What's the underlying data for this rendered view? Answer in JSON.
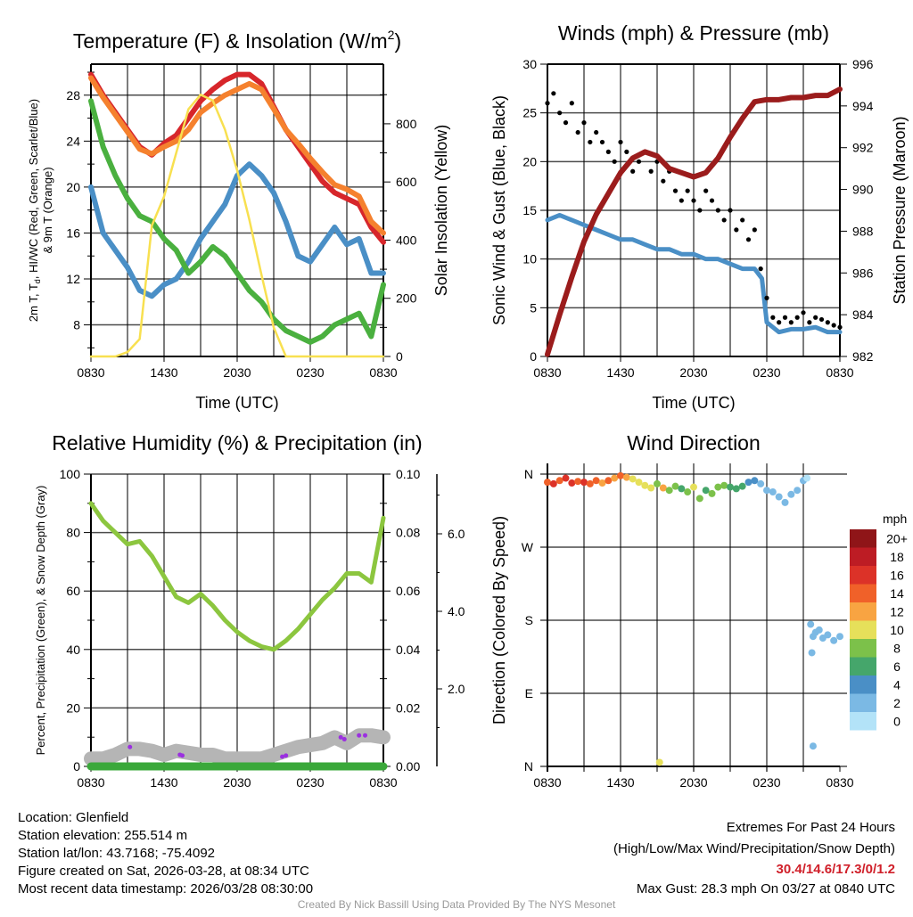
{
  "footer": {
    "location": "Location: Glenfield",
    "elevation": "Station elevation: 255.514 m",
    "latlon": "Station lat/lon: 43.7168; -75.4092",
    "created": "Figure created on Sat, 2026-03-28, at 08:34 UTC",
    "recent": "Most recent data timestamp: 2026/03/28 08:30:00",
    "extremes_title": "Extremes For Past 24 Hours",
    "extremes_sub": "(High/Low/Max Wind/Precipitation/Snow Depth)",
    "extremes_values": "30.4/14.6/17.3/0/1.2",
    "max_gust": "Max Gust: 28.3 mph On 03/27 at 0840 UTC",
    "credit": "Created By Nick Bassill Using Data Provided By The NYS Mesonet"
  },
  "colors": {
    "red": "#d7262b",
    "orange": "#f5812e",
    "green": "#4ab03f",
    "blue": "#4a8fc6",
    "yellow": "#f8e050",
    "black": "#000000",
    "maroon": "#9b1c1c",
    "rh": "#8cc63f",
    "precip": "#3aa83a",
    "snow": "#b5b5b5",
    "purple": "#9b30e0"
  },
  "chart_data": [
    {
      "type": "line",
      "title": "Temperature (F) & Insolation (W/m",
      "title_sup": "2",
      "title_end": ")",
      "xlabel": "Time (UTC)",
      "ylabel": "2m T, T",
      "ylabel_sub": "d",
      "ylabel_rest": ", HI/WC (Red, Green, Scarlet/Blue)",
      "ylabel2": "& 9m T (Orange)",
      "y2label": "Solar Insolation (Yellow)",
      "xticks": [
        "0830",
        "1430",
        "2030",
        "0230",
        "0830"
      ],
      "x_hours": [
        0,
        1,
        2,
        3,
        4,
        5,
        6,
        7,
        8,
        9,
        10,
        11,
        12,
        13,
        14,
        15,
        16,
        17,
        18,
        19,
        20,
        21,
        22,
        23,
        24
      ],
      "ylim": [
        5.25,
        30.7
      ],
      "yticks": [
        8,
        12,
        16,
        20,
        24,
        28
      ],
      "y2lim": [
        0,
        1005
      ],
      "y2ticks": [
        0,
        200,
        400,
        600,
        800
      ],
      "grid": true,
      "series": [
        {
          "name": "2m T",
          "axis": "left",
          "color": "red",
          "values": [
            29.8,
            28,
            26.5,
            25,
            23.5,
            22.8,
            23.8,
            24.5,
            26,
            27.5,
            28.5,
            29.3,
            29.8,
            29.8,
            29,
            27,
            25,
            23.5,
            22,
            20.5,
            19.5,
            19,
            18.5,
            16.5,
            15.2
          ]
        },
        {
          "name": "9m T",
          "axis": "left",
          "color": "orange",
          "values": [
            29.5,
            27.8,
            26.3,
            24.8,
            23.3,
            22.9,
            23.5,
            24,
            25,
            26.5,
            27.3,
            28,
            28.5,
            29,
            28.5,
            26.8,
            25,
            23.8,
            22.5,
            21.3,
            20.2,
            19.8,
            19.2,
            17,
            16
          ]
        },
        {
          "name": "HI/WC",
          "axis": "left",
          "color": "blue",
          "values": [
            20,
            16,
            14.5,
            13,
            11,
            10.5,
            11.5,
            12,
            13.5,
            15.5,
            17,
            18.5,
            21,
            22,
            21,
            19.5,
            17,
            14,
            13.5,
            15,
            16.5,
            15,
            15.5,
            12.5,
            12.5
          ]
        },
        {
          "name": "Td",
          "axis": "left",
          "color": "green",
          "values": [
            27.5,
            23.5,
            21,
            19,
            17.5,
            17,
            15.5,
            14.5,
            12.5,
            13.5,
            14.8,
            14,
            12.5,
            11,
            10,
            8.5,
            7.5,
            7,
            6.5,
            7,
            8,
            8.5,
            9,
            7,
            11.5
          ]
        },
        {
          "name": "Solar Insolation",
          "axis": "right",
          "color": "yellow",
          "values": [
            0,
            0,
            0,
            15,
            60,
            450,
            550,
            700,
            850,
            900,
            880,
            780,
            640,
            470,
            280,
            100,
            0,
            0,
            0,
            0,
            0,
            0,
            0,
            0,
            0
          ]
        }
      ]
    },
    {
      "type": "line",
      "title": "Winds (mph) & Pressure (mb)",
      "xlabel": "Time (UTC)",
      "ylabel": "Sonic Wind & Gust (Blue, Black)",
      "y2label": "Station Pressure (Maroon)",
      "xticks": [
        "0830",
        "1430",
        "2030",
        "0230",
        "0830"
      ],
      "ylim": [
        0,
        30
      ],
      "yticks": [
        0,
        5,
        10,
        15,
        20,
        25,
        30
      ],
      "y2lim": [
        982,
        996
      ],
      "y2ticks": [
        982,
        984,
        986,
        988,
        990,
        992,
        994,
        996
      ],
      "grid": true,
      "series": [
        {
          "name": "Sonic Wind",
          "axis": "left",
          "color": "blue",
          "x_hours": [
            0,
            1,
            2,
            3,
            4,
            5,
            6,
            7,
            8,
            9,
            10,
            11,
            12,
            13,
            14,
            15,
            16,
            17,
            17.6,
            18,
            19,
            20,
            21,
            22,
            23,
            24
          ],
          "values": [
            14,
            14.5,
            14,
            13.5,
            13,
            12.5,
            12,
            12,
            11.5,
            11,
            11,
            10.5,
            10.5,
            10,
            10,
            9.5,
            9,
            9,
            8,
            3.5,
            2.5,
            2.8,
            2.8,
            3,
            2.5,
            2.5
          ]
        },
        {
          "name": "Gust",
          "axis": "left",
          "color": "black",
          "style": "points",
          "x_step": 0.5,
          "values": [
            26,
            27,
            25,
            24,
            26,
            23,
            24,
            22,
            23,
            22,
            21,
            20,
            22,
            21,
            19,
            20,
            21,
            19,
            20,
            18,
            19,
            17,
            16,
            17,
            16,
            15,
            17,
            16,
            15,
            14,
            15,
            13,
            14,
            12,
            13,
            9,
            6,
            4,
            3.5,
            4,
            3.5,
            4,
            4.5,
            3.5,
            4,
            3.8,
            3.5,
            3.2,
            3
          ]
        },
        {
          "name": "Station Pressure",
          "axis": "right",
          "color": "maroon",
          "x_step": 1,
          "values": [
            982.1,
            984,
            985.8,
            987.5,
            988.8,
            989.8,
            990.8,
            991.5,
            991.8,
            991.6,
            991,
            990.8,
            990.6,
            990.8,
            991.5,
            992.5,
            993.4,
            994.2,
            994.3,
            994.3,
            994.4,
            994.4,
            994.5,
            994.5,
            994.8
          ]
        }
      ]
    },
    {
      "type": "line",
      "title": "Relative Humidity (%) & Precipitation (in)",
      "ylabel": "Percent, Precipitation (Green), & Snow Depth (Gray)",
      "xticks": [
        "0830",
        "1430",
        "2030",
        "0230",
        "0830"
      ],
      "ylim": [
        0,
        100
      ],
      "yticks": [
        0,
        20,
        40,
        60,
        80,
        100
      ],
      "y2lim": [
        0,
        0.1
      ],
      "y2ticks": [
        "0.00",
        "0.02",
        "0.04",
        "0.06",
        "0.08",
        "0.10"
      ],
      "y3ticks": [
        "2.0",
        "4.0",
        "6.0"
      ],
      "grid": true,
      "series": [
        {
          "name": "Relative Humidity",
          "axis": "left",
          "color": "rh",
          "values": [
            90,
            84,
            80,
            76,
            77,
            72,
            65,
            58,
            56,
            59,
            55,
            50,
            46,
            43,
            41,
            40,
            43,
            47,
            52,
            57,
            61,
            66,
            66,
            63,
            85
          ]
        },
        {
          "name": "Precipitation",
          "axis": "right",
          "color": "precip",
          "values": [
            0,
            0,
            0,
            0,
            0,
            0,
            0,
            0,
            0,
            0,
            0,
            0,
            0,
            0,
            0,
            0,
            0,
            0,
            0,
            0,
            0,
            0,
            0,
            0,
            0
          ]
        },
        {
          "name": "Snow Depth",
          "axis": "third",
          "color": "snow",
          "values": [
            0.2,
            0.2,
            0.3,
            0.45,
            0.45,
            0.4,
            0.3,
            0.4,
            0.35,
            0.3,
            0.3,
            0.2,
            0.2,
            0.2,
            0.2,
            0.3,
            0.4,
            0.5,
            0.55,
            0.6,
            0.75,
            0.6,
            0.8,
            0.8,
            0.75
          ]
        },
        {
          "name": "Purple Points",
          "axis": "third",
          "color": "purple",
          "style": "points",
          "points": [
            [
              3.2,
              0.5
            ],
            [
              7.3,
              0.3
            ],
            [
              7.5,
              0.28
            ],
            [
              15.7,
              0.25
            ],
            [
              16,
              0.28
            ],
            [
              20.5,
              0.75
            ],
            [
              20.8,
              0.7
            ],
            [
              22,
              0.8
            ],
            [
              22.5,
              0.8
            ]
          ]
        }
      ]
    },
    {
      "type": "scatter",
      "title": "Wind Direction",
      "ylabel": "Direction (Colored By Speed)",
      "xticks": [
        "0830",
        "1430",
        "2030",
        "0230",
        "0830"
      ],
      "ylim": [
        0,
        360
      ],
      "yticks": [
        {
          "v": 0,
          "label": "N"
        },
        {
          "v": 90,
          "label": "E"
        },
        {
          "v": 180,
          "label": "S"
        },
        {
          "v": 270,
          "label": "W"
        },
        {
          "v": 360,
          "label": "N"
        }
      ],
      "colorbar": {
        "title": "mph",
        "levels": [
          {
            "label": "20+",
            "color": "#8f1518"
          },
          {
            "label": "18",
            "color": "#bd1c24"
          },
          {
            "label": "16",
            "color": "#dc3228"
          },
          {
            "label": "14",
            "color": "#f06129"
          },
          {
            "label": "12",
            "color": "#f8a442"
          },
          {
            "label": "10",
            "color": "#e6e05a"
          },
          {
            "label": "8",
            "color": "#7cc14a"
          },
          {
            "label": "6",
            "color": "#45a66b"
          },
          {
            "label": "4",
            "color": "#4a8fc6"
          },
          {
            "label": "2",
            "color": "#7bb9e4"
          },
          {
            "label": "0",
            "color": "#b3e3f8"
          }
        ]
      },
      "points_hour_dir_speed": [
        [
          0,
          350,
          15
        ],
        [
          0.5,
          348,
          16
        ],
        [
          1,
          352,
          15
        ],
        [
          1.5,
          355,
          17
        ],
        [
          2,
          349,
          16
        ],
        [
          2.5,
          351,
          15
        ],
        [
          3,
          350,
          16
        ],
        [
          3.5,
          348,
          14
        ],
        [
          4,
          352,
          15
        ],
        [
          4.5,
          349,
          13
        ],
        [
          5,
          352,
          14
        ],
        [
          5.5,
          355,
          13
        ],
        [
          6,
          358,
          14
        ],
        [
          6.5,
          356,
          12
        ],
        [
          7,
          354,
          11
        ],
        [
          7.5,
          350,
          10
        ],
        [
          8,
          346,
          11
        ],
        [
          8.5,
          343,
          10
        ],
        [
          9,
          348,
          9
        ],
        [
          9.5,
          343,
          12
        ],
        [
          10,
          340,
          9
        ],
        [
          10.5,
          345,
          8
        ],
        [
          11,
          342,
          7
        ],
        [
          11.5,
          338,
          8
        ],
        [
          12,
          344,
          10
        ],
        [
          12.5,
          330,
          8
        ],
        [
          13,
          340,
          7
        ],
        [
          13.5,
          336,
          8
        ],
        [
          14,
          344,
          9
        ],
        [
          14.5,
          346,
          8
        ],
        [
          15,
          344,
          7
        ],
        [
          15.5,
          342,
          6
        ],
        [
          16,
          345,
          6
        ],
        [
          16.5,
          350,
          5
        ],
        [
          17,
          352,
          4
        ],
        [
          17.5,
          348,
          3
        ],
        [
          18,
          340,
          2
        ],
        [
          18.5,
          338,
          2
        ],
        [
          19,
          332,
          3
        ],
        [
          19.5,
          325,
          2
        ],
        [
          20,
          335,
          2
        ],
        [
          20.5,
          340,
          2
        ],
        [
          21,
          352,
          2
        ],
        [
          21.3,
          355,
          1
        ],
        [
          21.8,
          160,
          2
        ],
        [
          22,
          165,
          2
        ],
        [
          22.3,
          168,
          2
        ],
        [
          22.6,
          158,
          2
        ],
        [
          23,
          162,
          2
        ],
        [
          23.5,
          155,
          2
        ],
        [
          24,
          160,
          2
        ],
        [
          9.2,
          5,
          10
        ],
        [
          21.8,
          25,
          2
        ],
        [
          21.6,
          175,
          2
        ],
        [
          21.7,
          140,
          2
        ]
      ]
    }
  ]
}
